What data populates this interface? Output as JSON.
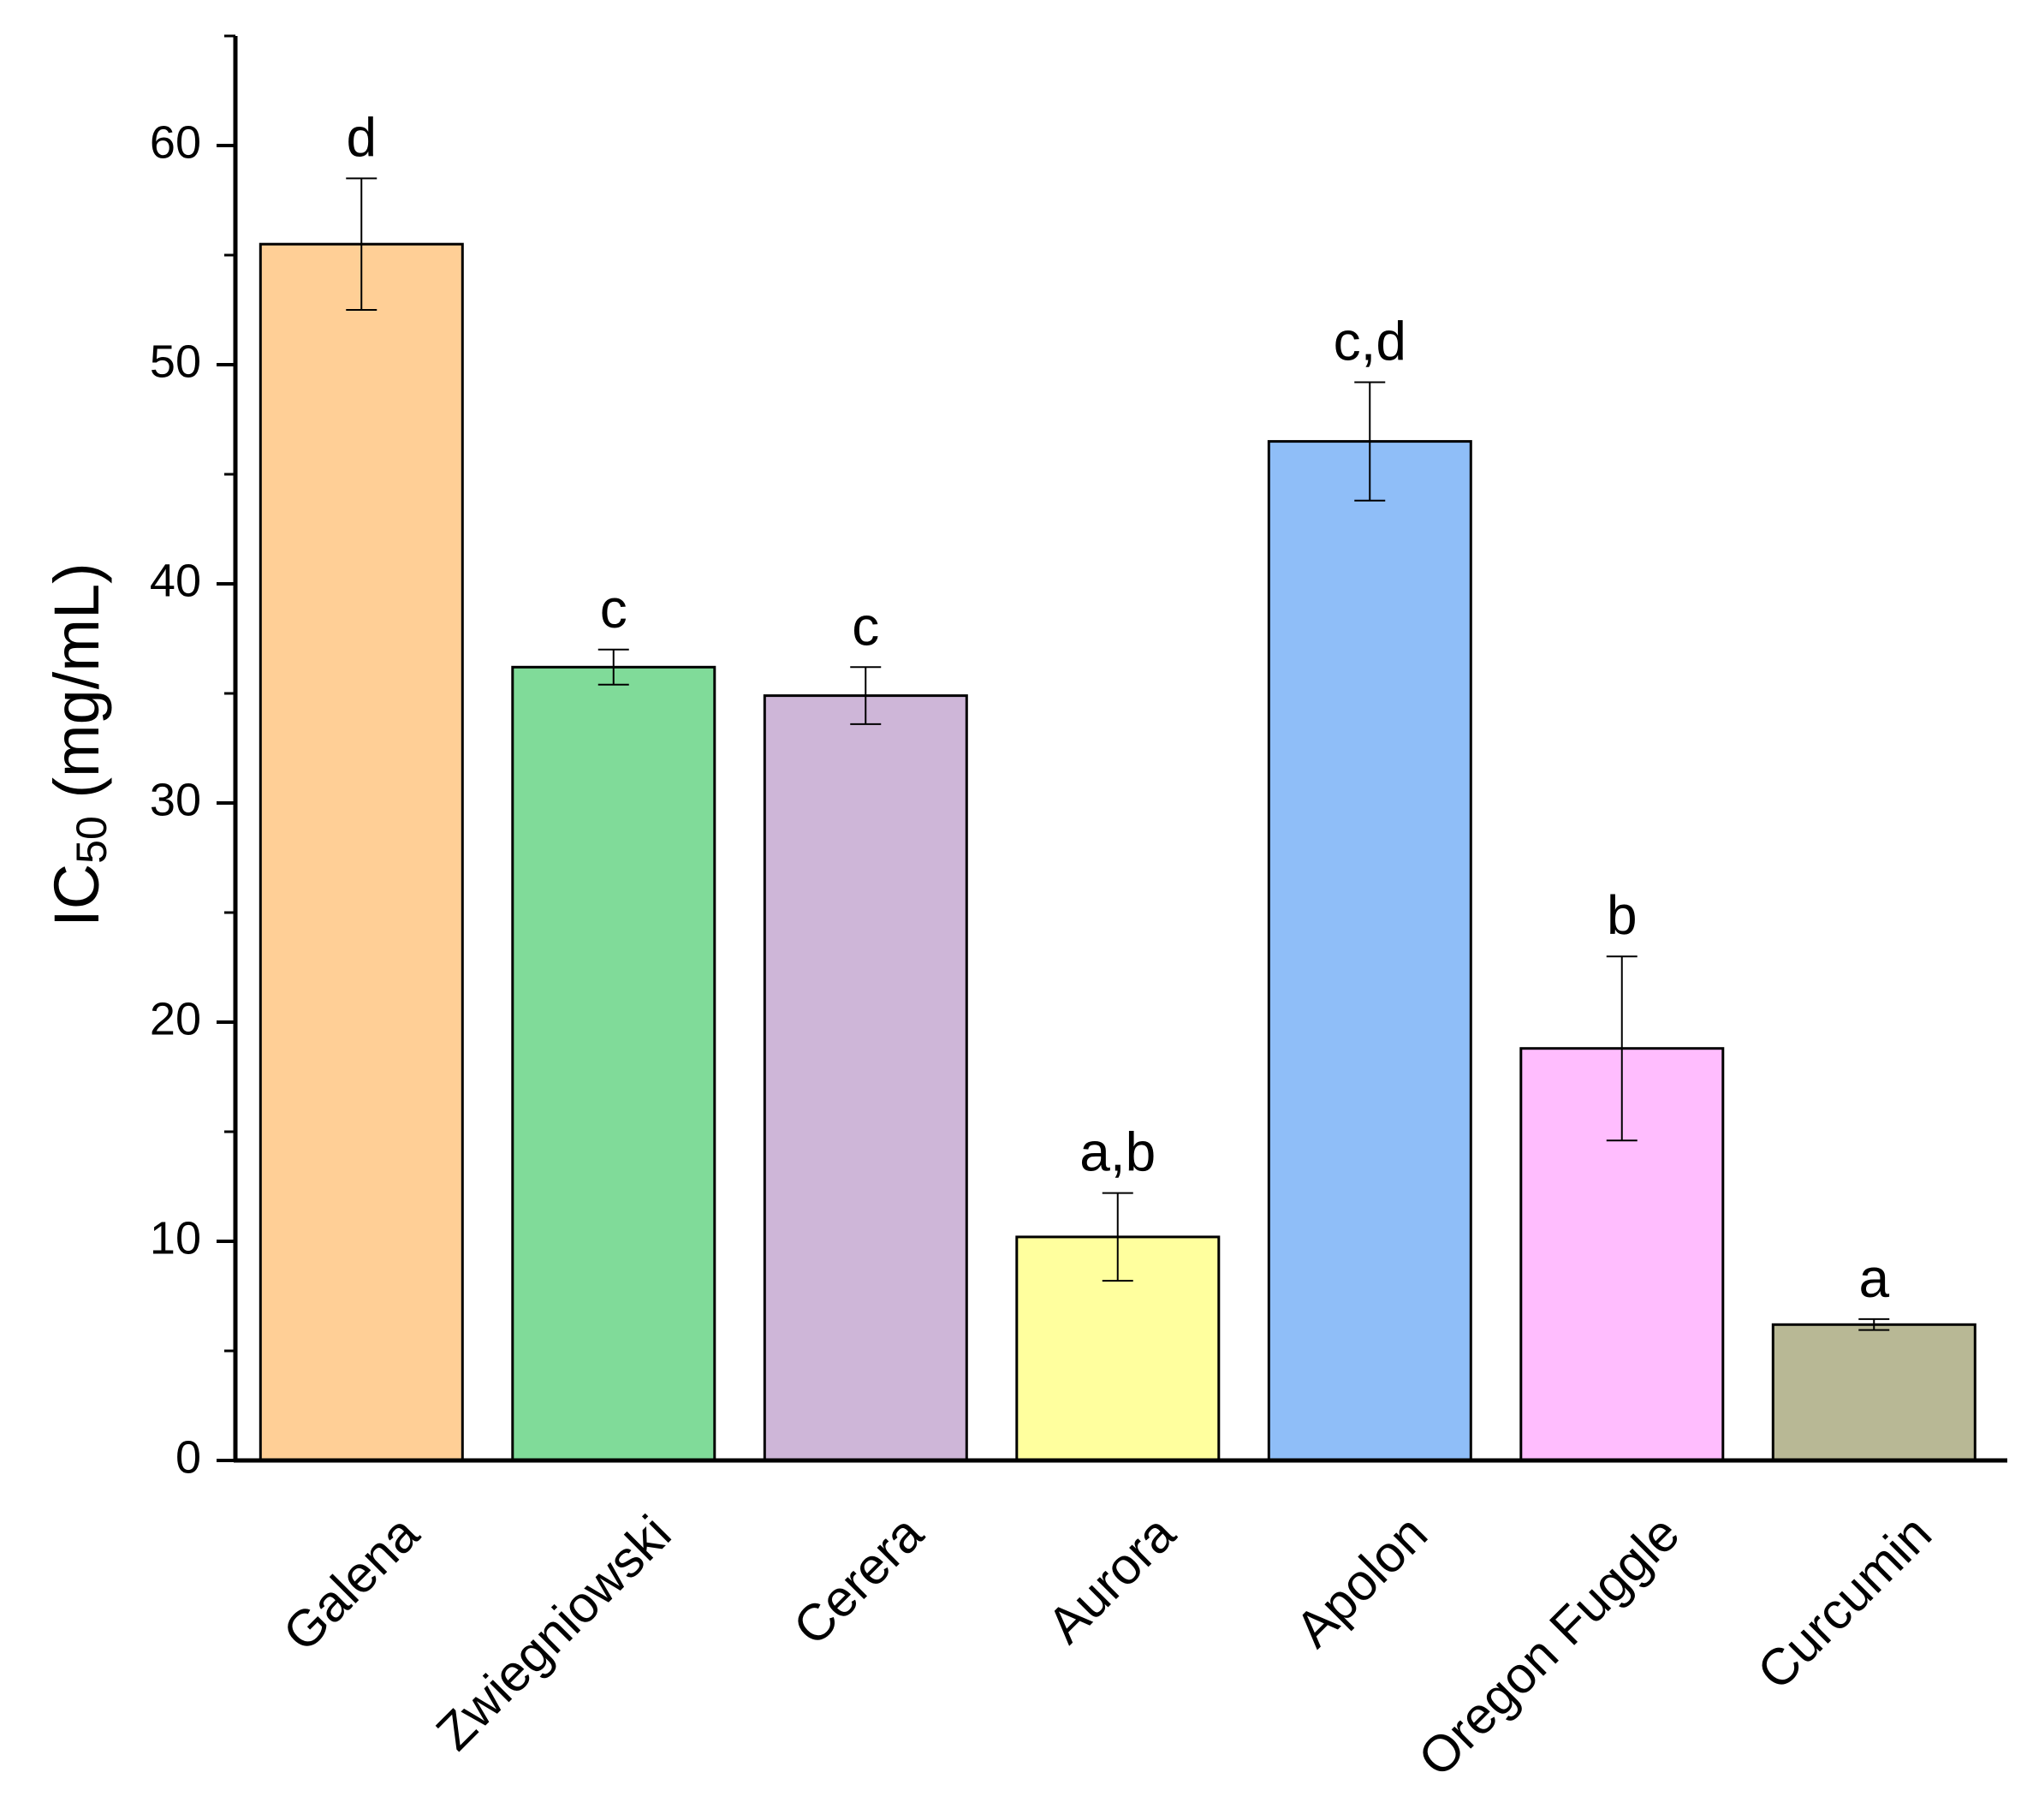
{
  "chart_data": {
    "type": "bar",
    "title": "",
    "xlabel": "",
    "ylabel": {
      "main": "IC",
      "subscript": "50",
      "unit": " (mg/mL)"
    },
    "ylim": [
      0,
      65
    ],
    "yticks": [
      0,
      10,
      20,
      30,
      40,
      50,
      60
    ],
    "yticks_minor": [
      5,
      15,
      25,
      35,
      45,
      55,
      65
    ],
    "grid": false,
    "categories": [
      "Galena",
      "Zwiegniowski",
      "Cerera",
      "Aurora",
      "Apolon",
      "Oregon Fuggle",
      "Curcumin"
    ],
    "values": [
      55.5,
      36.2,
      34.9,
      10.2,
      46.5,
      18.8,
      6.2
    ],
    "errors": [
      3.0,
      0.8,
      1.3,
      2.0,
      2.7,
      4.2,
      0.25
    ],
    "significance": [
      "d",
      "c",
      "c",
      "a,b",
      "c,d",
      "b",
      "a"
    ],
    "colors": [
      "#FFCF96",
      "#80DB99",
      "#CEB6D8",
      "#FFFF9E",
      "#8FBEF8",
      "#FFBDFE",
      "#B8B895"
    ]
  }
}
